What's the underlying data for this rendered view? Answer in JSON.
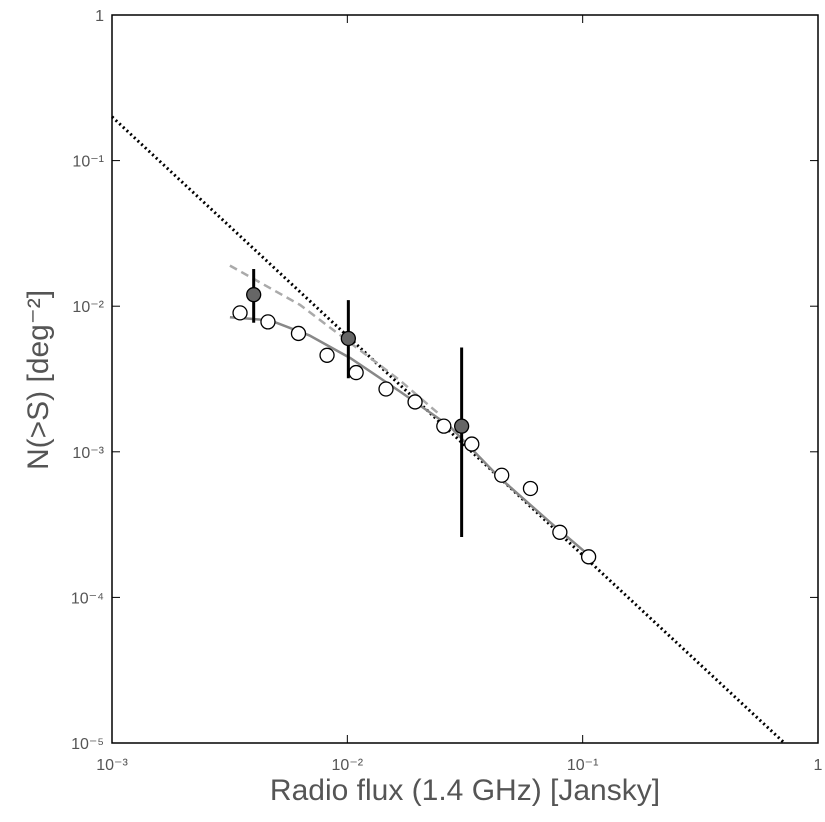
{
  "chart_data": {
    "type": "scatter",
    "xlabel": "Radio flux (1.4 GHz) [Jansky]",
    "ylabel": "N(>S) [deg⁻²]",
    "xscale": "log",
    "yscale": "log",
    "xlim": [
      0.001,
      1
    ],
    "ylim": [
      1e-05,
      1
    ],
    "xticks": [
      {
        "value": 0.001,
        "label": "10⁻³"
      },
      {
        "value": 0.01,
        "label": "10⁻²"
      },
      {
        "value": 0.1,
        "label": "10⁻¹"
      },
      1
    ],
    "yticks": [
      {
        "value": 1e-05,
        "label": "10⁻⁵"
      },
      {
        "value": 0.0001,
        "label": "10⁻⁴"
      },
      {
        "value": 0.001,
        "label": "10⁻³"
      },
      {
        "value": 0.01,
        "label": "10⁻²"
      },
      {
        "value": 0.1,
        "label": "10⁻¹"
      },
      1
    ],
    "series": [
      {
        "style": "dotted",
        "color": "#000000",
        "x": [
          0.001,
          0.72
        ],
        "values": [
          0.2,
          1e-05
        ]
      },
      {
        "style": "dashed",
        "color": "#aaaaaa",
        "x": [
          0.00317,
          0.0063,
          0.0103,
          0.0167,
          0.0247
        ],
        "values": [
          0.019,
          0.0102,
          0.0056,
          0.0031,
          0.0018
        ]
      },
      {
        "style": "solid",
        "color": "#888888",
        "x": [
          0.00317,
          0.0047,
          0.0069,
          0.0103,
          0.0167,
          0.0272,
          0.0445,
          0.0724,
          0.1125
        ],
        "values": [
          0.0084,
          0.008,
          0.0063,
          0.0044,
          0.0026,
          0.0015,
          0.00066,
          0.00033,
          0.00018
        ]
      },
      {
        "style": "open-circle",
        "color": "#000000",
        "x": [
          0.0035,
          0.0046,
          0.0062,
          0.0082,
          0.0109,
          0.0146,
          0.0194,
          0.0257,
          0.0338,
          0.0453,
          0.06,
          0.08,
          0.106
        ],
        "values": [
          0.009,
          0.0078,
          0.0065,
          0.0046,
          0.0035,
          0.0027,
          0.0022,
          0.0015,
          0.00113,
          0.00069,
          0.00056,
          0.00028,
          0.00019
        ]
      },
      {
        "style": "filled-circle",
        "color": "#666666",
        "x": [
          0.004,
          0.0101,
          0.0306
        ],
        "values": [
          0.012,
          0.006,
          0.0015
        ],
        "lower": [
          0.0077,
          0.0032,
          0.00026
        ],
        "upper": [
          0.018,
          0.011,
          0.0052
        ]
      }
    ]
  }
}
